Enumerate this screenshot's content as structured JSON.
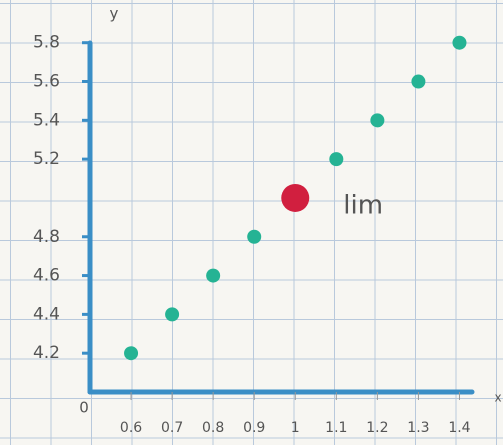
{
  "chart_data": {
    "type": "scatter",
    "x_label": "x",
    "y_label": "y",
    "origin_label": "0",
    "annotation": "lim",
    "series": [
      {
        "color": "#25b394",
        "x": [
          0.6,
          0.7,
          0.8,
          0.9,
          1.1,
          1.2,
          1.3,
          1.4
        ],
        "values": [
          4.2,
          4.4,
          4.6,
          4.8,
          5.2,
          5.4,
          5.6,
          5.8
        ]
      },
      {
        "color": "#d11f3f",
        "x": [
          1
        ],
        "values": [
          5.0
        ]
      }
    ],
    "xlim": [
      0.5,
      1.45
    ],
    "ylim": [
      4.0,
      5.85
    ],
    "xticks": [
      0.6,
      0.7,
      0.8,
      0.9,
      1,
      1.1,
      1.2,
      1.3,
      1.4
    ],
    "yticks": [
      4.2,
      4.4,
      4.6,
      4.8,
      5.2,
      5.4,
      5.6,
      5.8
    ],
    "axis_color": "#3a8ec6"
  }
}
